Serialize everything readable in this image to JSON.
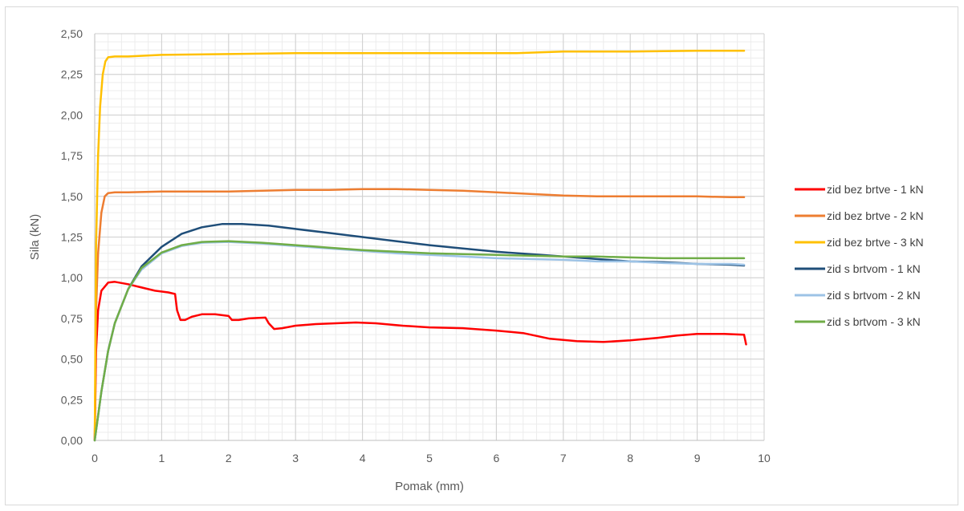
{
  "chart_data": {
    "type": "line",
    "title": "",
    "xlabel": "Pomak (mm)",
    "ylabel": "Sila (kN)",
    "xlim": [
      0,
      10
    ],
    "ylim": [
      0,
      2.5
    ],
    "x_ticks": [
      "0",
      "1",
      "2",
      "3",
      "4",
      "5",
      "6",
      "7",
      "8",
      "9",
      "10"
    ],
    "y_ticks": [
      "0,00",
      "0,25",
      "0,50",
      "0,75",
      "1,00",
      "1,25",
      "1,50",
      "1,75",
      "2,00",
      "2,25",
      "2,50"
    ],
    "grid": true,
    "legend_position": "right",
    "series": [
      {
        "name": "zid bez brtve - 1 kN",
        "color": "#ff0000",
        "points": [
          [
            0,
            0
          ],
          [
            0.02,
            0.55
          ],
          [
            0.05,
            0.8
          ],
          [
            0.1,
            0.92
          ],
          [
            0.2,
            0.97
          ],
          [
            0.3,
            0.975
          ],
          [
            0.5,
            0.96
          ],
          [
            0.7,
            0.94
          ],
          [
            0.9,
            0.92
          ],
          [
            1.1,
            0.91
          ],
          [
            1.2,
            0.9
          ],
          [
            1.23,
            0.8
          ],
          [
            1.28,
            0.74
          ],
          [
            1.35,
            0.74
          ],
          [
            1.45,
            0.76
          ],
          [
            1.6,
            0.775
          ],
          [
            1.8,
            0.775
          ],
          [
            2.0,
            0.765
          ],
          [
            2.05,
            0.74
          ],
          [
            2.15,
            0.74
          ],
          [
            2.3,
            0.75
          ],
          [
            2.55,
            0.755
          ],
          [
            2.6,
            0.72
          ],
          [
            2.68,
            0.685
          ],
          [
            2.8,
            0.69
          ],
          [
            3.0,
            0.705
          ],
          [
            3.3,
            0.715
          ],
          [
            3.6,
            0.72
          ],
          [
            3.9,
            0.725
          ],
          [
            4.2,
            0.72
          ],
          [
            4.6,
            0.705
          ],
          [
            5.0,
            0.695
          ],
          [
            5.5,
            0.69
          ],
          [
            6.0,
            0.675
          ],
          [
            6.4,
            0.66
          ],
          [
            6.8,
            0.625
          ],
          [
            7.2,
            0.61
          ],
          [
            7.6,
            0.605
          ],
          [
            8.0,
            0.615
          ],
          [
            8.4,
            0.63
          ],
          [
            8.7,
            0.645
          ],
          [
            9.0,
            0.655
          ],
          [
            9.4,
            0.655
          ],
          [
            9.7,
            0.65
          ],
          [
            9.73,
            0.59
          ]
        ]
      },
      {
        "name": "zid bez brtve - 2 kN",
        "color": "#ed7d31",
        "points": [
          [
            0,
            0
          ],
          [
            0.02,
            0.8
          ],
          [
            0.05,
            1.15
          ],
          [
            0.1,
            1.4
          ],
          [
            0.15,
            1.5
          ],
          [
            0.2,
            1.52
          ],
          [
            0.3,
            1.525
          ],
          [
            0.5,
            1.525
          ],
          [
            1.0,
            1.53
          ],
          [
            2.0,
            1.53
          ],
          [
            3.0,
            1.54
          ],
          [
            3.5,
            1.54
          ],
          [
            4.0,
            1.545
          ],
          [
            4.5,
            1.545
          ],
          [
            5.0,
            1.54
          ],
          [
            5.5,
            1.535
          ],
          [
            6.0,
            1.525
          ],
          [
            6.5,
            1.515
          ],
          [
            7.0,
            1.505
          ],
          [
            7.5,
            1.5
          ],
          [
            8.0,
            1.5
          ],
          [
            8.5,
            1.5
          ],
          [
            9.0,
            1.5
          ],
          [
            9.5,
            1.495
          ],
          [
            9.7,
            1.495
          ]
        ]
      },
      {
        "name": "zid bez brtve - 3 kN",
        "color": "#ffc000",
        "points": [
          [
            0,
            0
          ],
          [
            0.02,
            1.2
          ],
          [
            0.05,
            1.75
          ],
          [
            0.08,
            2.05
          ],
          [
            0.12,
            2.25
          ],
          [
            0.16,
            2.33
          ],
          [
            0.2,
            2.355
          ],
          [
            0.3,
            2.36
          ],
          [
            0.5,
            2.36
          ],
          [
            1.0,
            2.37
          ],
          [
            2.0,
            2.375
          ],
          [
            3.0,
            2.38
          ],
          [
            4.0,
            2.38
          ],
          [
            5.0,
            2.38
          ],
          [
            6.0,
            2.38
          ],
          [
            6.3,
            2.38
          ],
          [
            7.0,
            2.39
          ],
          [
            8.0,
            2.39
          ],
          [
            9.0,
            2.395
          ],
          [
            9.7,
            2.395
          ]
        ]
      },
      {
        "name": "zid s brtvom - 1 kN",
        "color": "#1f4e79",
        "points": [
          [
            0,
            0
          ],
          [
            0.1,
            0.3
          ],
          [
            0.2,
            0.55
          ],
          [
            0.3,
            0.72
          ],
          [
            0.5,
            0.93
          ],
          [
            0.7,
            1.07
          ],
          [
            1.0,
            1.19
          ],
          [
            1.3,
            1.27
          ],
          [
            1.6,
            1.31
          ],
          [
            1.9,
            1.33
          ],
          [
            2.2,
            1.33
          ],
          [
            2.6,
            1.32
          ],
          [
            3.0,
            1.3
          ],
          [
            3.5,
            1.275
          ],
          [
            4.0,
            1.25
          ],
          [
            4.5,
            1.225
          ],
          [
            5.0,
            1.2
          ],
          [
            5.5,
            1.18
          ],
          [
            6.0,
            1.16
          ],
          [
            6.5,
            1.145
          ],
          [
            7.0,
            1.13
          ],
          [
            7.5,
            1.115
          ],
          [
            8.0,
            1.1
          ],
          [
            8.5,
            1.095
          ],
          [
            9.0,
            1.085
          ],
          [
            9.5,
            1.08
          ],
          [
            9.7,
            1.075
          ]
        ]
      },
      {
        "name": "zid s brtvom - 2 kN",
        "color": "#9dc3e6",
        "points": [
          [
            0,
            0
          ],
          [
            0.1,
            0.3
          ],
          [
            0.2,
            0.55
          ],
          [
            0.3,
            0.72
          ],
          [
            0.5,
            0.93
          ],
          [
            0.7,
            1.05
          ],
          [
            1.0,
            1.15
          ],
          [
            1.3,
            1.195
          ],
          [
            1.6,
            1.215
          ],
          [
            2.0,
            1.22
          ],
          [
            2.5,
            1.21
          ],
          [
            3.0,
            1.195
          ],
          [
            3.5,
            1.18
          ],
          [
            4.0,
            1.165
          ],
          [
            4.5,
            1.15
          ],
          [
            5.0,
            1.14
          ],
          [
            5.5,
            1.13
          ],
          [
            6.0,
            1.12
          ],
          [
            6.5,
            1.115
          ],
          [
            7.0,
            1.11
          ],
          [
            7.5,
            1.1
          ],
          [
            8.0,
            1.1
          ],
          [
            8.5,
            1.09
          ],
          [
            9.0,
            1.085
          ],
          [
            9.5,
            1.085
          ],
          [
            9.7,
            1.08
          ]
        ]
      },
      {
        "name": "zid s brtvom - 3 kN",
        "color": "#70ad47",
        "points": [
          [
            0,
            0
          ],
          [
            0.1,
            0.3
          ],
          [
            0.2,
            0.55
          ],
          [
            0.3,
            0.72
          ],
          [
            0.5,
            0.93
          ],
          [
            0.7,
            1.06
          ],
          [
            1.0,
            1.155
          ],
          [
            1.3,
            1.2
          ],
          [
            1.6,
            1.22
          ],
          [
            2.0,
            1.225
          ],
          [
            2.5,
            1.215
          ],
          [
            3.0,
            1.2
          ],
          [
            3.5,
            1.185
          ],
          [
            4.0,
            1.17
          ],
          [
            4.5,
            1.16
          ],
          [
            5.0,
            1.15
          ],
          [
            5.5,
            1.145
          ],
          [
            6.0,
            1.14
          ],
          [
            6.5,
            1.135
          ],
          [
            7.0,
            1.13
          ],
          [
            7.5,
            1.13
          ],
          [
            8.0,
            1.125
          ],
          [
            8.5,
            1.12
          ],
          [
            9.0,
            1.12
          ],
          [
            9.5,
            1.12
          ],
          [
            9.7,
            1.12
          ]
        ]
      }
    ]
  }
}
